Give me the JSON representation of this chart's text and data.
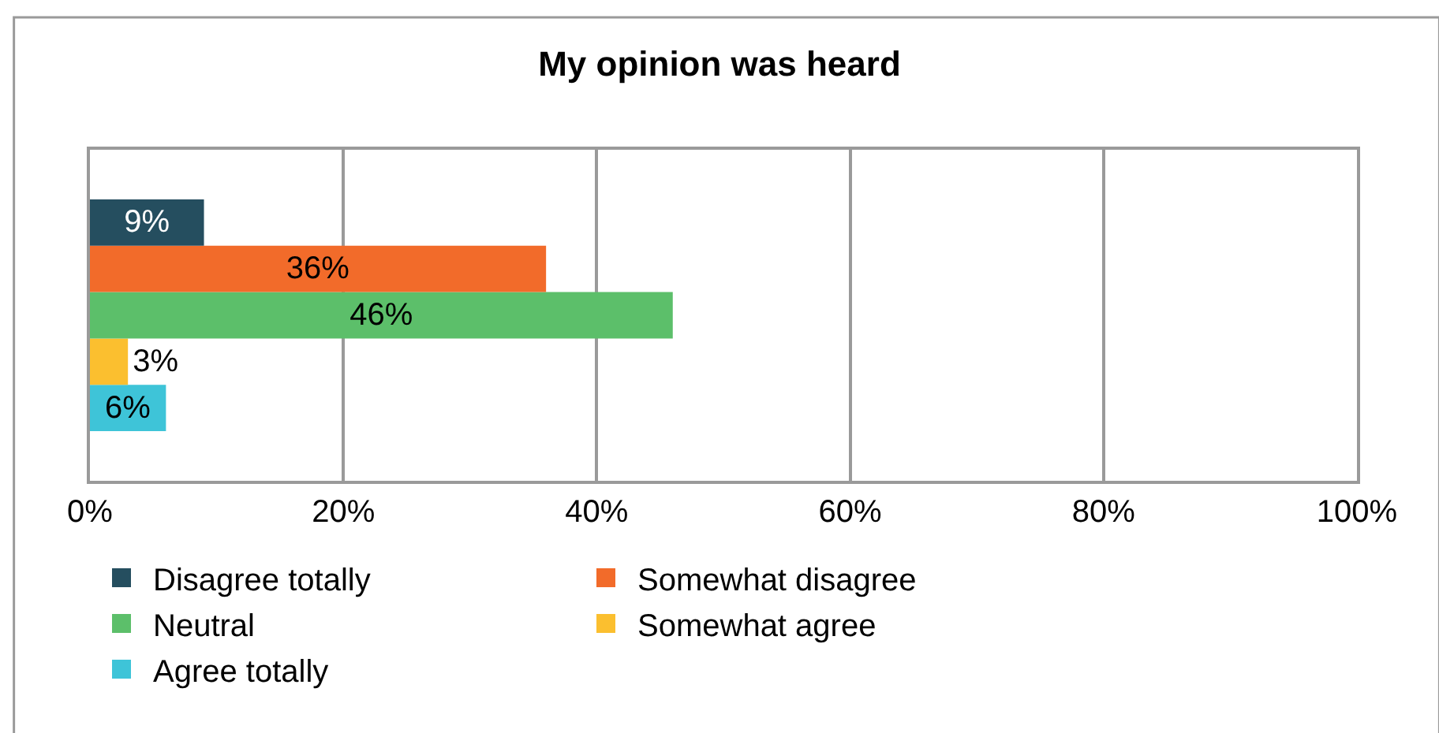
{
  "chart_data": {
    "type": "bar",
    "orientation": "horizontal",
    "title": "My opinion was heard",
    "categories": [
      null
    ],
    "series": [
      {
        "name": "Disagree totally",
        "color": "#254e5f",
        "values": [
          9
        ],
        "value_labels": [
          "9%"
        ]
      },
      {
        "name": "Somewhat disagree",
        "color": "#f26b2a",
        "values": [
          36
        ],
        "value_labels": [
          "36%"
        ]
      },
      {
        "name": "Neutral",
        "color": "#5cbf6a",
        "values": [
          46
        ],
        "value_labels": [
          "46%"
        ]
      },
      {
        "name": "Somewhat agree",
        "color": "#fbbf2f",
        "values": [
          3
        ],
        "value_labels": [
          "3%"
        ]
      },
      {
        "name": "Agree totally",
        "color": "#3ec4d8",
        "values": [
          6
        ],
        "value_labels": [
          "6%"
        ]
      }
    ],
    "xlim": [
      0,
      100
    ],
    "xticks": [
      {
        "value": 0,
        "label": "0%"
      },
      {
        "value": 20,
        "label": "20%"
      },
      {
        "value": 40,
        "label": "40%"
      },
      {
        "value": 60,
        "label": "60%"
      },
      {
        "value": 80,
        "label": "80%"
      },
      {
        "value": 100,
        "label": "100%"
      }
    ],
    "grid": "x",
    "legend": "bottom"
  }
}
